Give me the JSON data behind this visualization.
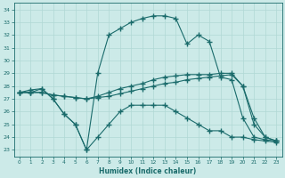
{
  "xlabel": "Humidex (Indice chaleur)",
  "bg_color": "#cceae8",
  "line_color": "#1a6b6b",
  "grid_color": "#b0d8d5",
  "xlim": [
    -0.5,
    23.5
  ],
  "ylim": [
    22.5,
    34.5
  ],
  "xticks": [
    0,
    1,
    2,
    3,
    4,
    5,
    6,
    7,
    8,
    9,
    10,
    11,
    12,
    13,
    14,
    15,
    16,
    17,
    18,
    19,
    20,
    21,
    22,
    23
  ],
  "yticks": [
    23,
    24,
    25,
    26,
    27,
    28,
    29,
    30,
    31,
    32,
    33,
    34
  ],
  "line1_x": [
    0,
    1,
    2,
    3,
    4,
    5,
    6,
    7,
    8,
    9,
    10,
    11,
    12,
    13,
    14,
    15,
    16,
    17,
    18,
    19,
    20,
    21,
    22,
    23
  ],
  "line1_y": [
    27.5,
    27.5,
    27.8,
    27.0,
    25.8,
    25.0,
    23.0,
    24.0,
    25.0,
    26.0,
    26.5,
    26.5,
    26.5,
    26.5,
    26.0,
    25.5,
    25.0,
    24.5,
    24.5,
    24.0,
    24.0,
    23.8,
    23.7,
    23.6
  ],
  "line2_x": [
    0,
    1,
    2,
    3,
    4,
    5,
    6,
    7,
    8,
    9,
    10,
    11,
    12,
    13,
    14,
    15,
    16,
    17,
    18,
    19,
    20,
    21,
    22,
    23
  ],
  "line2_y": [
    27.5,
    27.5,
    27.5,
    27.3,
    27.2,
    27.1,
    27.0,
    27.1,
    27.2,
    27.4,
    27.6,
    27.8,
    28.0,
    28.2,
    28.3,
    28.5,
    28.6,
    28.7,
    28.8,
    28.9,
    28.0,
    25.0,
    24.0,
    23.7
  ],
  "line3_x": [
    0,
    1,
    2,
    3,
    4,
    5,
    6,
    7,
    8,
    9,
    10,
    11,
    12,
    13,
    14,
    15,
    16,
    17,
    18,
    19,
    20,
    21,
    22,
    23
  ],
  "line3_y": [
    27.5,
    27.5,
    27.5,
    27.3,
    27.2,
    27.1,
    27.0,
    27.2,
    27.5,
    27.8,
    28.0,
    28.2,
    28.5,
    28.7,
    28.8,
    28.9,
    28.9,
    28.9,
    29.0,
    29.0,
    28.0,
    25.5,
    24.0,
    23.7
  ],
  "line4_x": [
    0,
    1,
    2,
    3,
    4,
    5,
    6,
    7,
    8,
    9,
    10,
    11,
    12,
    13,
    14,
    15,
    16,
    17,
    18,
    19,
    20,
    21,
    22,
    23
  ],
  "line4_y": [
    27.5,
    27.7,
    27.8,
    27.0,
    25.8,
    25.0,
    23.0,
    29.0,
    32.0,
    32.5,
    33.0,
    33.3,
    33.5,
    33.5,
    33.3,
    31.3,
    32.0,
    31.5,
    28.7,
    28.5,
    25.5,
    24.0,
    23.8,
    23.7
  ]
}
